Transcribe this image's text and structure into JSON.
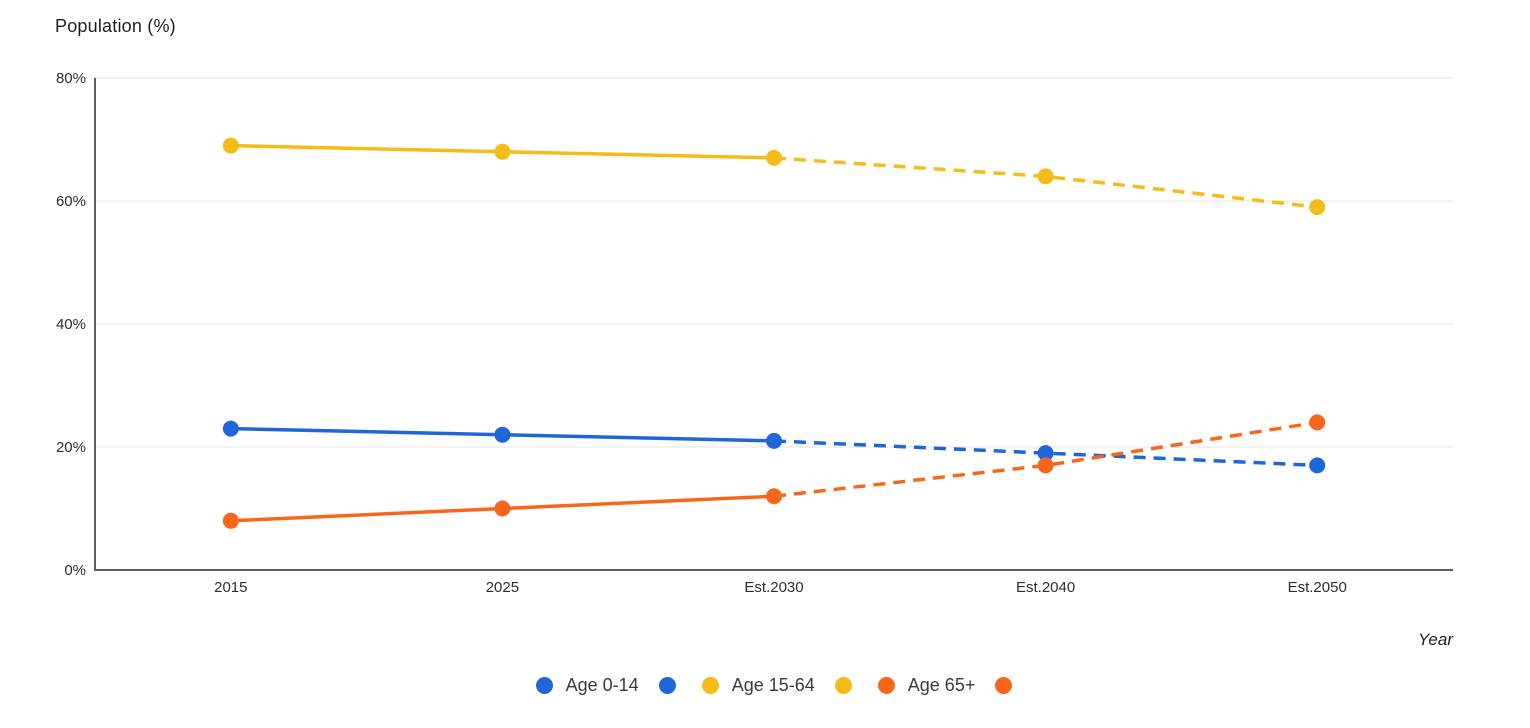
{
  "chart_data": {
    "type": "line",
    "title": "",
    "ylabel": "Population (%)",
    "xlabel": "Year",
    "categories": [
      "2015",
      "2025",
      "Est.2030",
      "Est.2040",
      "Est.2050"
    ],
    "y_tick_labels": [
      "0%",
      "20%",
      "40%",
      "60%",
      "80%"
    ],
    "ylim": [
      0,
      80
    ],
    "grid": true,
    "legend_position": "bottom",
    "estimate_start_index": 2,
    "series": [
      {
        "name": "Age 0-14",
        "color": "#1E66D9",
        "values": [
          23,
          22,
          21,
          19,
          17
        ]
      },
      {
        "name": "Age 15-64",
        "color": "#F5BB17",
        "values": [
          69,
          68,
          67,
          64,
          59
        ]
      },
      {
        "name": "Age 65+",
        "color": "#F8661C",
        "values": [
          8,
          10,
          12,
          17,
          24
        ]
      }
    ],
    "colors": {
      "grid": "#E3E3E3",
      "axis": "#5F5F5F",
      "tick_text": "#2E2E2E",
      "title_text": "#1F1F1F",
      "background": "#FFFFFF"
    }
  }
}
